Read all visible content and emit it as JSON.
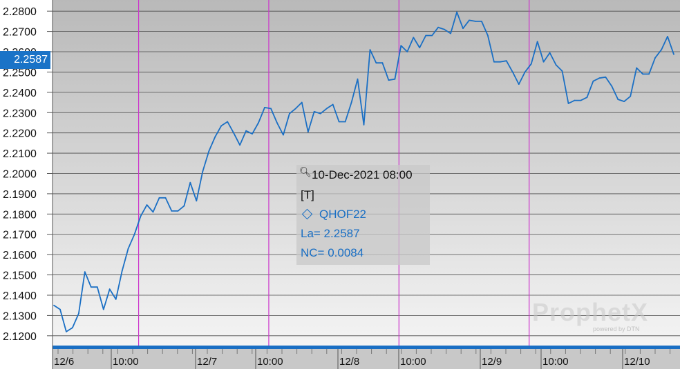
{
  "chart_data": {
    "type": "line",
    "symbol": "QHOF22",
    "series": [
      {
        "values": [
          2.135,
          2.133,
          2.122,
          2.124,
          2.131,
          2.1515,
          2.144,
          2.144,
          2.133,
          2.143,
          2.138,
          2.152,
          2.163,
          2.17,
          2.179,
          2.1845,
          2.181,
          2.188,
          2.188,
          2.1815,
          2.1815,
          2.184,
          2.1955,
          2.1865,
          2.201,
          2.211,
          2.218,
          2.2235,
          2.2255,
          2.22,
          2.214,
          2.221,
          2.2195,
          2.225,
          2.2325,
          2.232,
          2.225,
          2.219,
          2.2295,
          2.232,
          2.235,
          2.2205,
          2.2305,
          2.2295,
          2.232,
          2.234,
          2.2255,
          2.2255,
          2.235,
          2.2465,
          2.224,
          2.261,
          2.2545,
          2.2545,
          2.246,
          2.2465,
          2.263,
          2.26,
          2.267,
          2.262,
          2.268,
          2.268,
          2.272,
          2.271,
          2.269,
          2.2795,
          2.2715,
          2.2755,
          2.275,
          2.275,
          2.268,
          2.255,
          2.255,
          2.2555,
          2.25,
          2.244,
          2.25,
          2.254,
          2.265,
          2.255,
          2.2595,
          2.2535,
          2.2505,
          2.2345,
          2.236,
          2.236,
          2.2375,
          2.2455,
          2.247,
          2.2475,
          2.243,
          2.2365,
          2.2355,
          2.238,
          2.252,
          2.249,
          2.249,
          2.257,
          2.261,
          2.2675,
          2.2587
        ]
      }
    ],
    "ylim": [
      2.1145,
      2.2855
    ],
    "yticks": [
      "2.1200",
      "2.1300",
      "2.1400",
      "2.1500",
      "2.1600",
      "2.1700",
      "2.1800",
      "2.1900",
      "2.2000",
      "2.2100",
      "2.2200",
      "2.2300",
      "2.2400",
      "2.2500",
      "2.2600",
      "2.2700",
      "2.2800"
    ],
    "xticks": [
      "12/6",
      "10:00",
      "12/7",
      "10:00",
      "12/8",
      "10:00",
      "12/9",
      "10:00",
      "12/10"
    ],
    "last_value": "2.2587",
    "grid": true,
    "line_color": "#1a6fc4",
    "separator_color": "#cc33cc"
  },
  "tooltip": {
    "date": "10-Dec-2021 08:00",
    "tag": "[T]",
    "symbol": "QHOF22",
    "la": "La= 2.2587",
    "nc": "NC= 0.0084"
  },
  "logo": {
    "text": "ProphetX",
    "sub": "powered by DTN"
  }
}
